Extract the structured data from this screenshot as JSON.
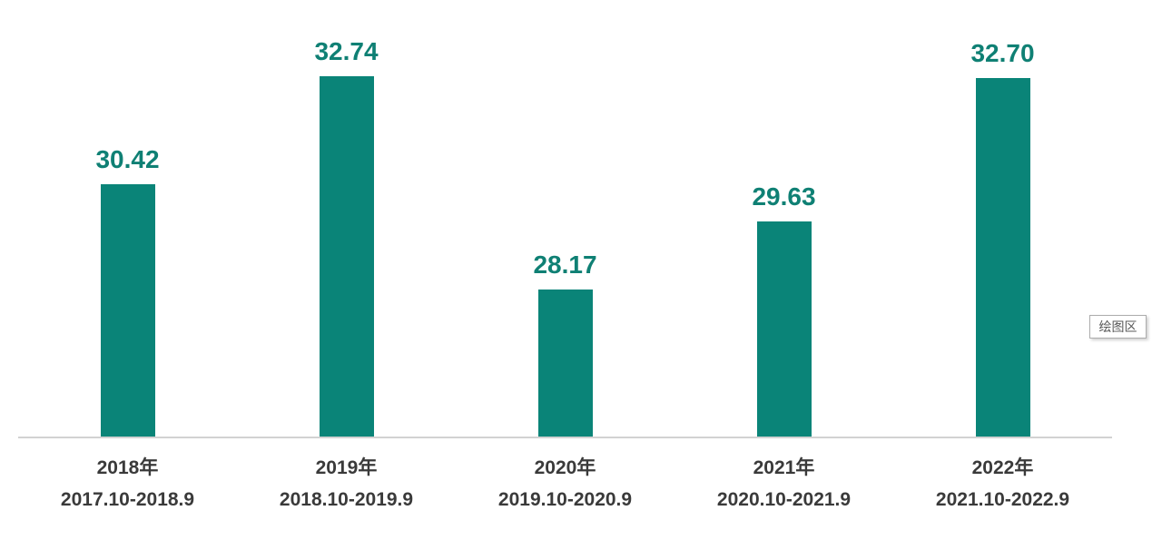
{
  "chart_data": {
    "type": "bar",
    "categories": [
      "2018年",
      "2019年",
      "2020年",
      "2021年",
      "2022年"
    ],
    "category_sublabels": [
      "2017.10-2018.9",
      "2018.10-2019.9",
      "2019.10-2020.9",
      "2020.10-2021.9",
      "2021.10-2022.9"
    ],
    "values": [
      30.42,
      32.74,
      28.17,
      29.63,
      32.7
    ],
    "value_labels": [
      "30.42",
      "32.74",
      "28.17",
      "29.63",
      "32.70"
    ],
    "title": "",
    "xlabel": "",
    "ylabel": "",
    "ylim": [
      25,
      33.9
    ],
    "grid": false,
    "legend": false,
    "bar_color": "#0A8478",
    "value_label_color": "#0F8074"
  },
  "tooltip": {
    "text": "绘图区"
  },
  "colors": {
    "background": "#FFFFFF",
    "bar": "#0A8478",
    "value_label": "#0F8074",
    "axis_line": "#D2D2D2",
    "category_label": "#3A3A3A",
    "tooltip_text": "#595959",
    "tooltip_border": "#ACACAC"
  }
}
